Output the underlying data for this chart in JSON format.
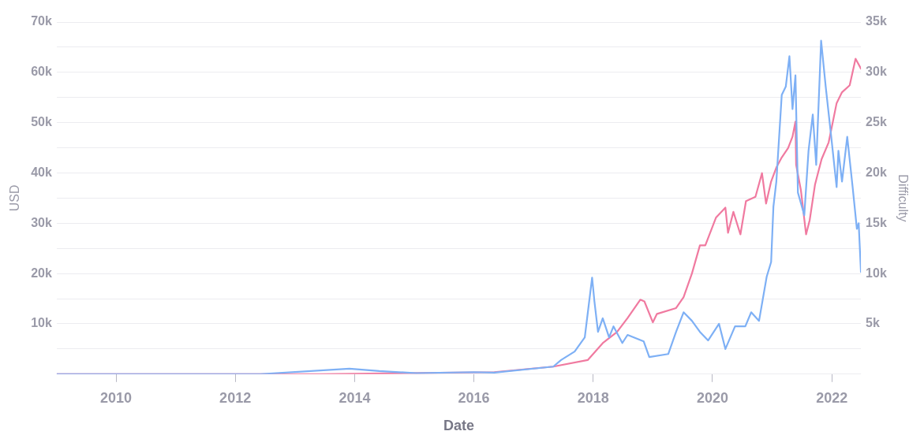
{
  "chart_data": {
    "type": "line",
    "xlabel": "Date",
    "ylabel": "USD",
    "y2label": "Difficulty",
    "xlim": [
      "2009-01-03",
      "2022-06-28"
    ],
    "xticks": [
      "2010",
      "2012",
      "2014",
      "2016",
      "2018",
      "2020",
      "2022"
    ],
    "ylim": [
      0,
      70000
    ],
    "yticks": [
      {
        "value": 0,
        "label": null
      },
      {
        "value": 5000,
        "label": null
      },
      {
        "value": 10000,
        "label": "10k"
      },
      {
        "value": 15000,
        "label": null
      },
      {
        "value": 20000,
        "label": "20k"
      },
      {
        "value": 25000,
        "label": null
      },
      {
        "value": 30000,
        "label": "30k"
      },
      {
        "value": 35000,
        "label": null
      },
      {
        "value": 40000,
        "label": "40k"
      },
      {
        "value": 45000,
        "label": null
      },
      {
        "value": 50000,
        "label": "50k"
      },
      {
        "value": 55000,
        "label": null
      },
      {
        "value": 60000,
        "label": "60k"
      },
      {
        "value": 65000,
        "label": null
      },
      {
        "value": 70000,
        "label": "70k"
      }
    ],
    "y2lim": [
      0,
      35000
    ],
    "y2ticks": [
      {
        "value": 5000,
        "label": "5k"
      },
      {
        "value": 10000,
        "label": "10k"
      },
      {
        "value": 15000,
        "label": "15k"
      },
      {
        "value": 20000,
        "label": "20k"
      },
      {
        "value": 25000,
        "label": "25k"
      },
      {
        "value": 30000,
        "label": "30k"
      },
      {
        "value": 35000,
        "label": "35k"
      }
    ],
    "grid": "y",
    "legend": false,
    "marker": "none",
    "line_style": "solid",
    "series": [
      {
        "color": "#7eb0f5",
        "x": [
          "2009-01-03",
          "2012-06-01",
          "2013-11-30",
          "2014-06-01",
          "2015-01-15",
          "2016-01-01",
          "2016-05-05",
          "2017-05-01",
          "2017-06-18",
          "2017-09-09",
          "2017-11-10",
          "2017-12-25",
          "2018-01-08",
          "2018-01-30",
          "2018-02-28",
          "2018-04-08",
          "2018-05-05",
          "2018-06-28",
          "2018-07-30",
          "2018-11-06",
          "2018-12-10",
          "2019-04-05",
          "2019-05-23",
          "2019-07-08",
          "2019-08-28",
          "2019-10-16",
          "2019-12-05",
          "2020-02-10",
          "2020-03-20",
          "2020-05-18",
          "2020-07-20",
          "2020-08-25",
          "2020-10-12",
          "2020-11-28",
          "2020-12-25",
          "2021-01-08",
          "2021-01-26",
          "2021-02-28",
          "2021-03-25",
          "2021-04-16",
          "2021-05-05",
          "2021-05-23",
          "2021-06-07",
          "2021-07-16",
          "2021-08-11",
          "2021-09-06",
          "2021-09-27",
          "2021-10-27",
          "2021-11-24",
          "2021-12-28",
          "2022-01-30",
          "2022-02-10",
          "2022-03-04",
          "2022-04-05",
          "2022-05-08",
          "2022-06-03",
          "2022-06-14",
          "2022-06-28"
        ],
        "values": [
          0,
          0,
          1100,
          600,
          200,
          400,
          300,
          1500,
          2800,
          4500,
          7300,
          19200,
          14500,
          8400,
          11100,
          7300,
          9500,
          6200,
          7800,
          6500,
          3400,
          4000,
          8400,
          12300,
          10600,
          8400,
          6700,
          10000,
          5000,
          9500,
          9500,
          12300,
          10600,
          19400,
          22300,
          33300,
          38300,
          55500,
          57200,
          63200,
          52700,
          59400,
          36100,
          31600,
          44400,
          51600,
          41600,
          66300,
          57200,
          47200,
          37200,
          44400,
          38300,
          47200,
          37200,
          28900,
          30000,
          20300
        ]
      },
      {
        "color": "#f07aa0",
        "axis": "y2",
        "x": [
          "2009-01-03",
          "2013-06-01",
          "2016-05-05",
          "2017-05-01",
          "2017-11-28",
          "2018-02-28",
          "2018-05-26",
          "2018-07-30",
          "2018-10-16",
          "2018-11-10",
          "2019-01-01",
          "2019-01-26",
          "2019-05-23",
          "2019-07-08",
          "2019-08-28",
          "2019-10-16",
          "2019-11-18",
          "2020-01-22",
          "2020-03-20",
          "2020-04-05",
          "2020-05-08",
          "2020-06-20",
          "2020-07-24",
          "2020-09-20",
          "2020-10-30",
          "2020-11-24",
          "2020-12-25",
          "2021-01-26",
          "2021-02-28",
          "2021-04-08",
          "2021-05-05",
          "2021-05-23",
          "2021-05-27",
          "2021-06-25",
          "2021-07-27",
          "2021-08-18",
          "2021-09-20",
          "2021-10-30",
          "2021-12-12",
          "2021-12-28",
          "2022-01-30",
          "2022-03-04",
          "2022-04-20",
          "2022-05-26",
          "2022-06-28"
        ],
        "values": [
          0,
          0,
          200,
          750,
          1400,
          3080,
          4180,
          5570,
          7400,
          7230,
          5150,
          5990,
          6570,
          7650,
          10000,
          12800,
          12800,
          15550,
          16550,
          14050,
          16130,
          13890,
          17200,
          17630,
          19980,
          16960,
          19150,
          20540,
          21540,
          22480,
          23610,
          25110,
          20810,
          18320,
          13890,
          15300,
          18870,
          21370,
          23030,
          24280,
          26940,
          28020,
          28710,
          31350,
          30370
        ]
      }
    ]
  }
}
